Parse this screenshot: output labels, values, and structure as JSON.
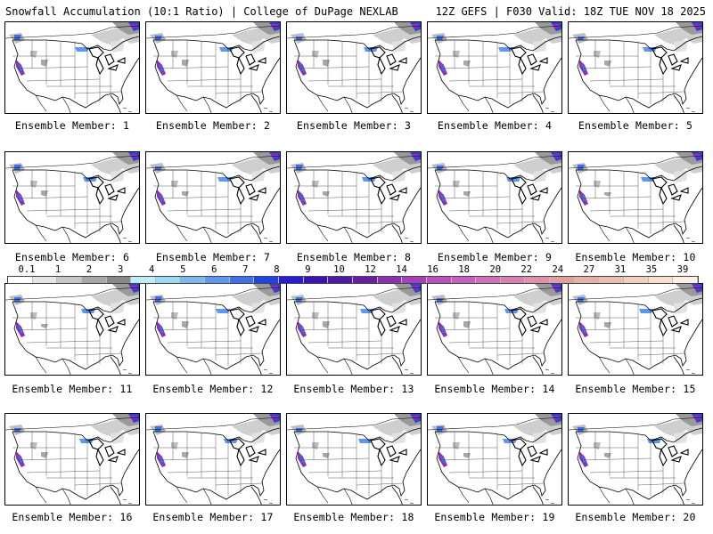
{
  "header": {
    "title_left": "Snowfall Accumulation (10:1 Ratio) | College of DuPage NEXLAB",
    "title_right": "12Z GEFS | F030 Valid: 18Z TUE NOV 18 2025"
  },
  "panels": [
    {
      "label": "Ensemble Member: 1"
    },
    {
      "label": "Ensemble Member: 2"
    },
    {
      "label": "Ensemble Member: 3"
    },
    {
      "label": "Ensemble Member: 4"
    },
    {
      "label": "Ensemble Member: 5"
    },
    {
      "label": "Ensemble Member: 6"
    },
    {
      "label": "Ensemble Member: 7"
    },
    {
      "label": "Ensemble Member: 8"
    },
    {
      "label": "Ensemble Member: 9"
    },
    {
      "label": "Ensemble Member: 10"
    },
    {
      "label": "Ensemble Member: 11"
    },
    {
      "label": "Ensemble Member: 12"
    },
    {
      "label": "Ensemble Member: 13"
    },
    {
      "label": "Ensemble Member: 14"
    },
    {
      "label": "Ensemble Member: 15"
    },
    {
      "label": "Ensemble Member: 16"
    },
    {
      "label": "Ensemble Member: 17"
    },
    {
      "label": "Ensemble Member: 18"
    },
    {
      "label": "Ensemble Member: 19"
    },
    {
      "label": "Ensemble Member: 20"
    }
  ],
  "colorbar": {
    "labels": [
      "0.1",
      "1",
      "2",
      "3",
      "4",
      "5",
      "6",
      "7",
      "8",
      "9",
      "10",
      "12",
      "14",
      "16",
      "18",
      "20",
      "22",
      "24",
      "27",
      "31",
      "35",
      "39"
    ],
    "colors": [
      "#ffffff",
      "#e6e6e6",
      "#c8c8c8",
      "#a8a8a8",
      "#888888",
      "#bfeff5",
      "#9ed8f2",
      "#7fb8f0",
      "#5f96ee",
      "#3f70e8",
      "#1f44e0",
      "#2a1bd6",
      "#3a12b8",
      "#4f1aa8",
      "#6a1fa0",
      "#8a30b0",
      "#a440b8",
      "#b850c0",
      "#c860c0",
      "#d070b8",
      "#d880b0",
      "#e090a8",
      "#e0a0a0",
      "#e6b0a8",
      "#ecc0b0",
      "#f2d0c0",
      "#f8e0d0",
      "#fcefe4"
    ]
  }
}
